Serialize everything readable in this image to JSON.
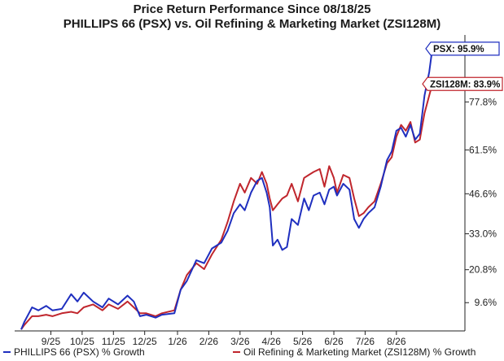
{
  "chart_data": {
    "type": "line",
    "title": "Price Return Performance Since 08/18/25",
    "subtitle": "PHILLIPS 66 (PSX)  vs.  Oil Refining & Marketing Market (ZSI128M)",
    "x_tick_labels": [
      "9/25",
      "10/25",
      "11/25",
      "12/25",
      "1/26",
      "2/26",
      "3/26",
      "4/26",
      "5/26",
      "6/26",
      "7/26",
      "8/26"
    ],
    "y_tick_labels": [
      "9.6%",
      "20.8%",
      "33.0%",
      "46.6%",
      "61.5%",
      "77.8%"
    ],
    "ylim": [
      0,
      97
    ],
    "grid": false,
    "legend_position": "bottom",
    "series": [
      {
        "name": "PHILLIPS 66 (PSX) % Growth",
        "color": "#1f2fbf",
        "end_label": "PSX: 95.9%",
        "points": [
          [
            0.0,
            0.5
          ],
          [
            0.1,
            3
          ],
          [
            0.35,
            8
          ],
          [
            0.55,
            7
          ],
          [
            0.8,
            8.5
          ],
          [
            1.0,
            7
          ],
          [
            1.3,
            7.5
          ],
          [
            1.6,
            12.5
          ],
          [
            1.8,
            10
          ],
          [
            2.0,
            13
          ],
          [
            2.3,
            10
          ],
          [
            2.6,
            8
          ],
          [
            2.8,
            11
          ],
          [
            3.1,
            9
          ],
          [
            3.4,
            12
          ],
          [
            3.6,
            10
          ],
          [
            3.8,
            5
          ],
          [
            4.0,
            5.5
          ],
          [
            4.3,
            4.5
          ],
          [
            4.5,
            5.5
          ],
          [
            4.9,
            6
          ],
          [
            5.1,
            14
          ],
          [
            5.3,
            17
          ],
          [
            5.6,
            24
          ],
          [
            5.85,
            23
          ],
          [
            6.1,
            28
          ],
          [
            6.4,
            30
          ],
          [
            6.6,
            34
          ],
          [
            6.8,
            40
          ],
          [
            7.0,
            43
          ],
          [
            7.15,
            41
          ],
          [
            7.35,
            47
          ],
          [
            7.55,
            51
          ],
          [
            7.7,
            52
          ],
          [
            7.85,
            47
          ],
          [
            7.95,
            42
          ],
          [
            8.05,
            29
          ],
          [
            8.2,
            31
          ],
          [
            8.35,
            27.5
          ],
          [
            8.5,
            28.5
          ],
          [
            8.65,
            38
          ],
          [
            8.85,
            36
          ],
          [
            9.05,
            45
          ],
          [
            9.2,
            41
          ],
          [
            9.35,
            46
          ],
          [
            9.55,
            47
          ],
          [
            9.7,
            43
          ],
          [
            9.85,
            48
          ],
          [
            10.0,
            49
          ],
          [
            10.1,
            46
          ],
          [
            10.3,
            50
          ],
          [
            10.5,
            48
          ],
          [
            10.65,
            38
          ],
          [
            10.8,
            35
          ],
          [
            10.95,
            38
          ],
          [
            11.1,
            40
          ],
          [
            11.3,
            42
          ],
          [
            11.5,
            49
          ],
          [
            11.7,
            58
          ],
          [
            11.85,
            61
          ],
          [
            12.0,
            68
          ],
          [
            12.15,
            69
          ],
          [
            12.3,
            66
          ],
          [
            12.45,
            70
          ],
          [
            12.6,
            65
          ],
          [
            12.75,
            67
          ],
          [
            12.9,
            80
          ],
          [
            13.05,
            88
          ],
          [
            13.15,
            95.9
          ]
        ]
      },
      {
        "name": "Oil Refining & Marketing Market (ZSI128M) % Growth",
        "color": "#c0262d",
        "end_label": "ZSI128M: 83.9%",
        "points": [
          [
            0.0,
            0.5
          ],
          [
            0.1,
            2
          ],
          [
            0.35,
            5
          ],
          [
            0.55,
            5
          ],
          [
            0.8,
            5.5
          ],
          [
            1.0,
            5
          ],
          [
            1.3,
            6
          ],
          [
            1.6,
            6.5
          ],
          [
            1.8,
            6
          ],
          [
            2.0,
            8
          ],
          [
            2.3,
            9
          ],
          [
            2.6,
            7
          ],
          [
            2.8,
            9
          ],
          [
            3.1,
            7.5
          ],
          [
            3.4,
            10
          ],
          [
            3.6,
            8
          ],
          [
            3.8,
            6
          ],
          [
            4.0,
            6
          ],
          [
            4.3,
            5
          ],
          [
            4.5,
            6
          ],
          [
            4.9,
            7
          ],
          [
            5.1,
            14
          ],
          [
            5.3,
            19
          ],
          [
            5.6,
            23
          ],
          [
            5.85,
            21
          ],
          [
            6.1,
            26
          ],
          [
            6.4,
            31
          ],
          [
            6.6,
            37
          ],
          [
            6.8,
            44
          ],
          [
            7.0,
            50
          ],
          [
            7.15,
            47
          ],
          [
            7.35,
            52
          ],
          [
            7.55,
            50
          ],
          [
            7.7,
            54
          ],
          [
            7.85,
            50
          ],
          [
            7.95,
            45
          ],
          [
            8.05,
            41
          ],
          [
            8.2,
            43
          ],
          [
            8.35,
            45
          ],
          [
            8.5,
            46
          ],
          [
            8.65,
            50
          ],
          [
            8.85,
            44
          ],
          [
            9.05,
            52
          ],
          [
            9.2,
            53
          ],
          [
            9.35,
            54
          ],
          [
            9.55,
            55
          ],
          [
            9.7,
            49
          ],
          [
            9.85,
            56
          ],
          [
            10.0,
            52
          ],
          [
            10.1,
            47
          ],
          [
            10.3,
            53
          ],
          [
            10.5,
            52
          ],
          [
            10.65,
            45
          ],
          [
            10.8,
            39
          ],
          [
            10.95,
            40
          ],
          [
            11.1,
            42
          ],
          [
            11.3,
            44
          ],
          [
            11.5,
            50
          ],
          [
            11.7,
            57
          ],
          [
            11.85,
            59
          ],
          [
            12.0,
            66
          ],
          [
            12.15,
            70
          ],
          [
            12.3,
            68
          ],
          [
            12.45,
            71
          ],
          [
            12.6,
            64
          ],
          [
            12.75,
            65
          ],
          [
            12.9,
            74
          ],
          [
            13.05,
            80
          ],
          [
            13.15,
            83.9
          ]
        ]
      }
    ]
  }
}
